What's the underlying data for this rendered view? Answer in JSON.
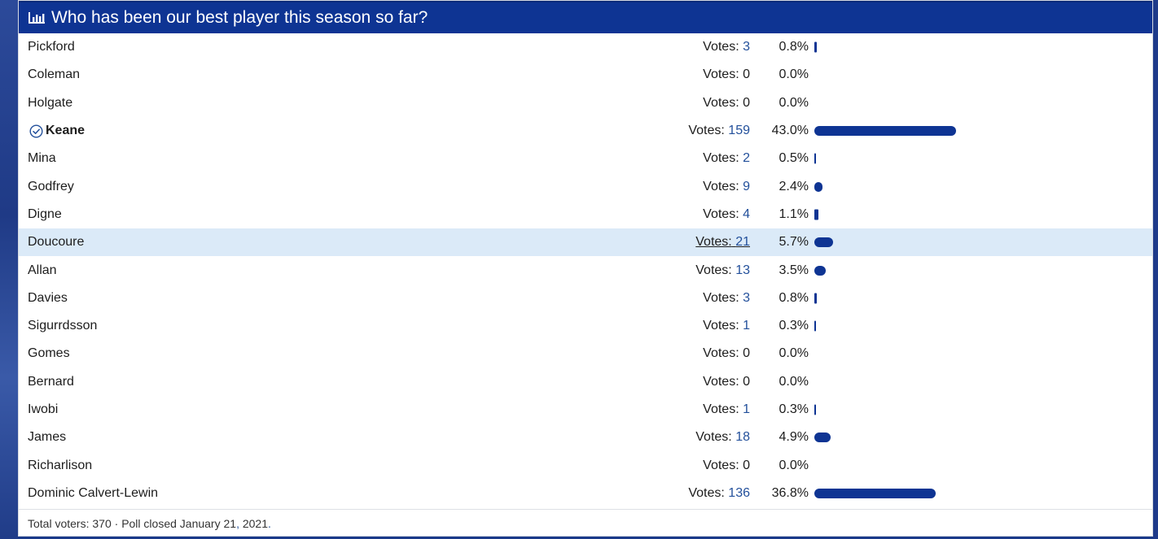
{
  "poll": {
    "title": "Who has been our best player this season so far?",
    "votes_label": "Votes:",
    "options": [
      {
        "name": "Pickford",
        "votes": 3,
        "percent": "0.8%",
        "fraction": 0.008
      },
      {
        "name": "Coleman",
        "votes": 0,
        "percent": "0.0%",
        "fraction": 0
      },
      {
        "name": "Holgate",
        "votes": 0,
        "percent": "0.0%",
        "fraction": 0
      },
      {
        "name": "Keane",
        "votes": 159,
        "percent": "43.0%",
        "fraction": 0.43,
        "voted": true
      },
      {
        "name": "Mina",
        "votes": 2,
        "percent": "0.5%",
        "fraction": 0.005
      },
      {
        "name": "Godfrey",
        "votes": 9,
        "percent": "2.4%",
        "fraction": 0.024
      },
      {
        "name": "Digne",
        "votes": 4,
        "percent": "1.1%",
        "fraction": 0.011
      },
      {
        "name": "Doucoure",
        "votes": 21,
        "percent": "5.7%",
        "fraction": 0.057,
        "hovered": true
      },
      {
        "name": "Allan",
        "votes": 13,
        "percent": "3.5%",
        "fraction": 0.035
      },
      {
        "name": "Davies",
        "votes": 3,
        "percent": "0.8%",
        "fraction": 0.008
      },
      {
        "name": "Sigurrdsson",
        "votes": 1,
        "percent": "0.3%",
        "fraction": 0.003
      },
      {
        "name": "Gomes",
        "votes": 0,
        "percent": "0.0%",
        "fraction": 0
      },
      {
        "name": "Bernard",
        "votes": 0,
        "percent": "0.0%",
        "fraction": 0
      },
      {
        "name": "Iwobi",
        "votes": 1,
        "percent": "0.3%",
        "fraction": 0.003
      },
      {
        "name": "James",
        "votes": 18,
        "percent": "4.9%",
        "fraction": 0.049
      },
      {
        "name": "Richarlison",
        "votes": 0,
        "percent": "0.0%",
        "fraction": 0
      },
      {
        "name": "Dominic Calvert-Lewin",
        "votes": 136,
        "percent": "36.8%",
        "fraction": 0.368
      }
    ],
    "footer": {
      "total_voters": "Total voters: 370",
      "separator": " · ",
      "closed_text": "Poll closed January 21",
      "closed_comma": ",",
      "closed_year": " 2021",
      "closed_period": "."
    },
    "colors": {
      "header_bg": "#0e3493",
      "bar": "#0e3493",
      "vote_link": "#23509b",
      "hover_row": "#dbeaf8"
    }
  }
}
